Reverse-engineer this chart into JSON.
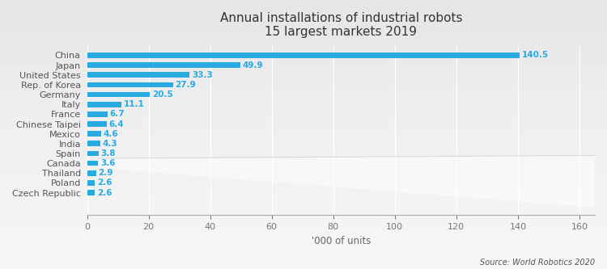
{
  "title_line1": "Annual installations of industrial robots",
  "title_line2": "15 largest markets 2019",
  "countries": [
    "Czech Republic",
    "Poland",
    "Thailand",
    "Canada",
    "Spain",
    "India",
    "Mexico",
    "Chinese Taipei",
    "France",
    "Italy",
    "Germany",
    "Rep. of Korea",
    "United States",
    "Japan",
    "China"
  ],
  "values": [
    2.6,
    2.6,
    2.9,
    3.6,
    3.8,
    4.3,
    4.6,
    6.4,
    6.7,
    11.1,
    20.5,
    27.9,
    33.3,
    49.9,
    140.5
  ],
  "bar_color": "#29ABE2",
  "xlabel": "'000 of units",
  "xlim": [
    0,
    165
  ],
  "xticks": [
    0,
    20,
    40,
    60,
    80,
    100,
    120,
    140,
    160
  ],
  "source_text": "Source: World Robotics 2020",
  "bg_top": "#D8D8D8",
  "bg_bottom": "#E8E8E8",
  "label_color": "#29ABE2",
  "title_color": "#333333",
  "country_color": "#555555",
  "value_fontsize": 7.5,
  "country_fontsize": 8,
  "title_fontsize": 11,
  "xlabel_fontsize": 8.5
}
